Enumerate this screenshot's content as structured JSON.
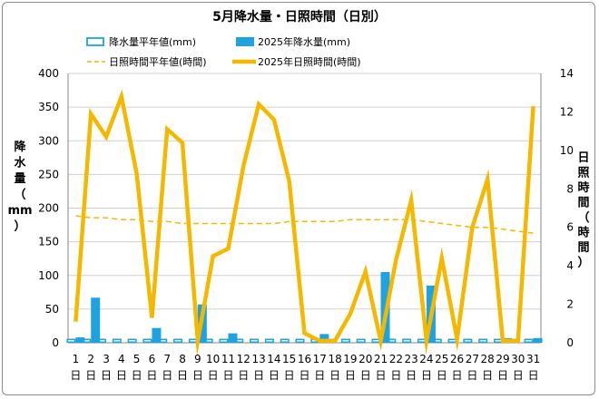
{
  "chart_data": {
    "type": "bar",
    "title": "5月降水量・日照時間（日別）",
    "ylabel_chars": [
      "降",
      "水",
      "量",
      "（",
      "mm",
      "）"
    ],
    "y2label_chars": [
      "日",
      "照",
      "時",
      "間",
      "（",
      "時",
      "間",
      "）"
    ],
    "categories": [
      "1",
      "2",
      "3",
      "4",
      "5",
      "6",
      "7",
      "8",
      "9",
      "10",
      "11",
      "12",
      "13",
      "14",
      "15",
      "16",
      "17",
      "18",
      "19",
      "20",
      "21",
      "22",
      "23",
      "24",
      "25",
      "26",
      "27",
      "28",
      "29",
      "30",
      "31"
    ],
    "category_suffix": "日",
    "y_left": {
      "min": 0,
      "max": 400,
      "ticks": [
        0,
        50,
        100,
        150,
        200,
        250,
        300,
        350,
        400
      ]
    },
    "y_right": {
      "min": 0,
      "max": 14,
      "ticks": [
        0,
        2,
        4,
        6,
        8,
        10,
        12,
        14
      ]
    },
    "grid": true,
    "legend": {
      "placement": "top"
    },
    "series": [
      {
        "name": "降水量平年値(mm)",
        "kind": "bar",
        "axis": "left",
        "style": "outline",
        "color": "#1fa3e0",
        "values": [
          5,
          5,
          5,
          5,
          5,
          5,
          5,
          5,
          5,
          5,
          5,
          5,
          5,
          5,
          5,
          5,
          5,
          5,
          5,
          5,
          5,
          5,
          5,
          5,
          5,
          5,
          5,
          5,
          5,
          5,
          5
        ]
      },
      {
        "name": "2025年降水量(mm)",
        "kind": "bar",
        "axis": "left",
        "style": "filled",
        "color": "#1fa3e0",
        "values": [
          8,
          67,
          0,
          0,
          0,
          22,
          0,
          0,
          57,
          0,
          14,
          0,
          0,
          0,
          0,
          0,
          13,
          0,
          0,
          0,
          105,
          0,
          0,
          85,
          0,
          0,
          0,
          0,
          7,
          0,
          7
        ]
      },
      {
        "name": "日照時間平年値(時間)",
        "kind": "line",
        "axis": "right",
        "style": "dashed",
        "color": "#f5b800",
        "values": [
          6.6,
          6.5,
          6.5,
          6.4,
          6.4,
          6.3,
          6.3,
          6.2,
          6.2,
          6.2,
          6.2,
          6.2,
          6.2,
          6.2,
          6.3,
          6.3,
          6.3,
          6.3,
          6.4,
          6.4,
          6.4,
          6.4,
          6.4,
          6.3,
          6.2,
          6.1,
          6.0,
          6.0,
          5.9,
          5.8,
          5.7
        ]
      },
      {
        "name": "2025年日照時間(時間)",
        "kind": "line",
        "axis": "right",
        "style": "solid",
        "color": "#f5b800",
        "values": [
          1.1,
          11.9,
          10.7,
          12.8,
          8.8,
          1.3,
          11.1,
          10.4,
          0.1,
          4.5,
          4.9,
          9.2,
          12.4,
          11.6,
          8.4,
          0.5,
          0.1,
          0.1,
          1.5,
          3.7,
          0.1,
          4.3,
          7.4,
          0.1,
          4.4,
          0.2,
          6.0,
          8.5,
          0.1,
          0.1,
          12.3
        ]
      }
    ]
  }
}
